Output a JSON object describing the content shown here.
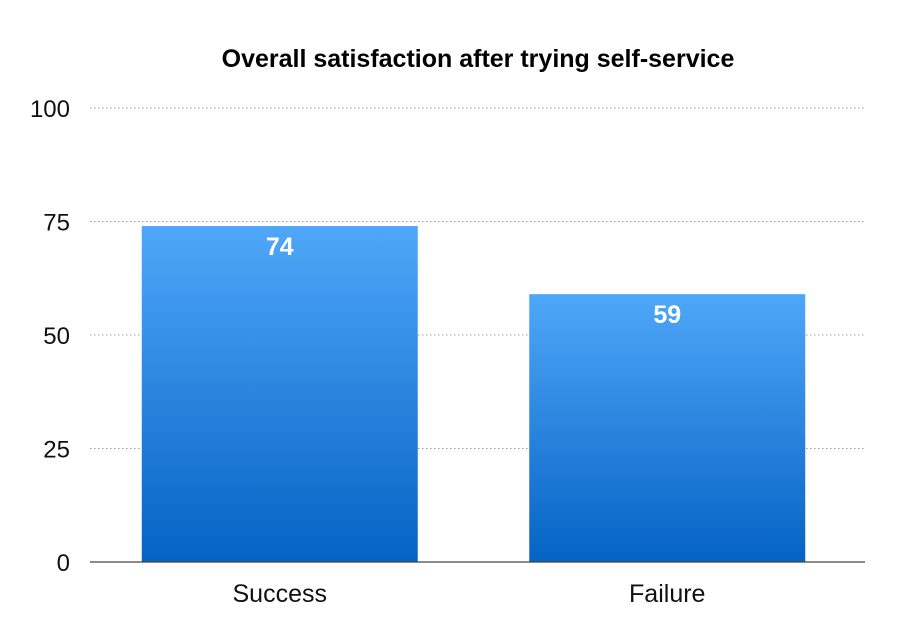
{
  "chart_data": {
    "type": "bar",
    "title": "Overall satisfaction after trying self-service",
    "categories": [
      "Success",
      "Failure"
    ],
    "values": [
      74,
      59
    ],
    "data_labels": [
      "74",
      "59"
    ],
    "xlabel": "",
    "ylabel": "",
    "ylim": [
      0,
      100
    ],
    "yticks": [
      0,
      25,
      50,
      75,
      100
    ],
    "ytick_labels": [
      "0",
      "25",
      "50",
      "75",
      "100"
    ],
    "grid": true,
    "legend": "none",
    "colors": {
      "bar_top": "#4fa7f8",
      "bar_bottom": "#0563c4",
      "label": "#ffffff"
    }
  }
}
